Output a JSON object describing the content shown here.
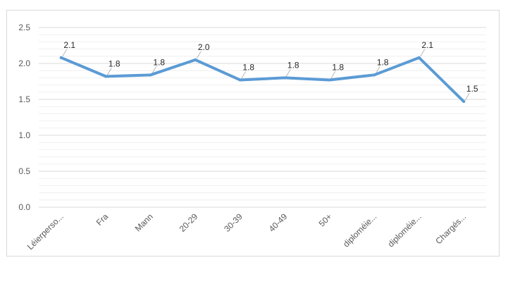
{
  "chart_data": {
    "type": "line",
    "title": "",
    "xlabel": "",
    "ylabel": "",
    "ylim": [
      0,
      2.5
    ],
    "yticks": [
      "0.0",
      "0.5",
      "1.0",
      "1.5",
      "2.0",
      "2.5"
    ],
    "grid": true,
    "legend": "none",
    "categories": [
      "Léierperso...",
      "Fra",
      "Mann",
      "20-29",
      "30-39",
      "40-49",
      "50+",
      "diploméie...",
      "diploméie...",
      "Chargés..."
    ],
    "series": [
      {
        "values": [
          2.08,
          1.82,
          1.84,
          2.05,
          1.77,
          1.8,
          1.77,
          1.84,
          2.08,
          1.47
        ],
        "labels": [
          "2.1",
          "1.8",
          "1.8",
          "2.0",
          "1.8",
          "1.8",
          "1.8",
          "1.8",
          "2.1",
          "1.5"
        ],
        "color": "#5b9bd5"
      }
    ],
    "colors": {
      "line": "#5b9bd5",
      "grid": "#d9d9d9",
      "minor_grid": "#efefef",
      "tick_text": "#595959",
      "label_text": "#262626"
    }
  }
}
